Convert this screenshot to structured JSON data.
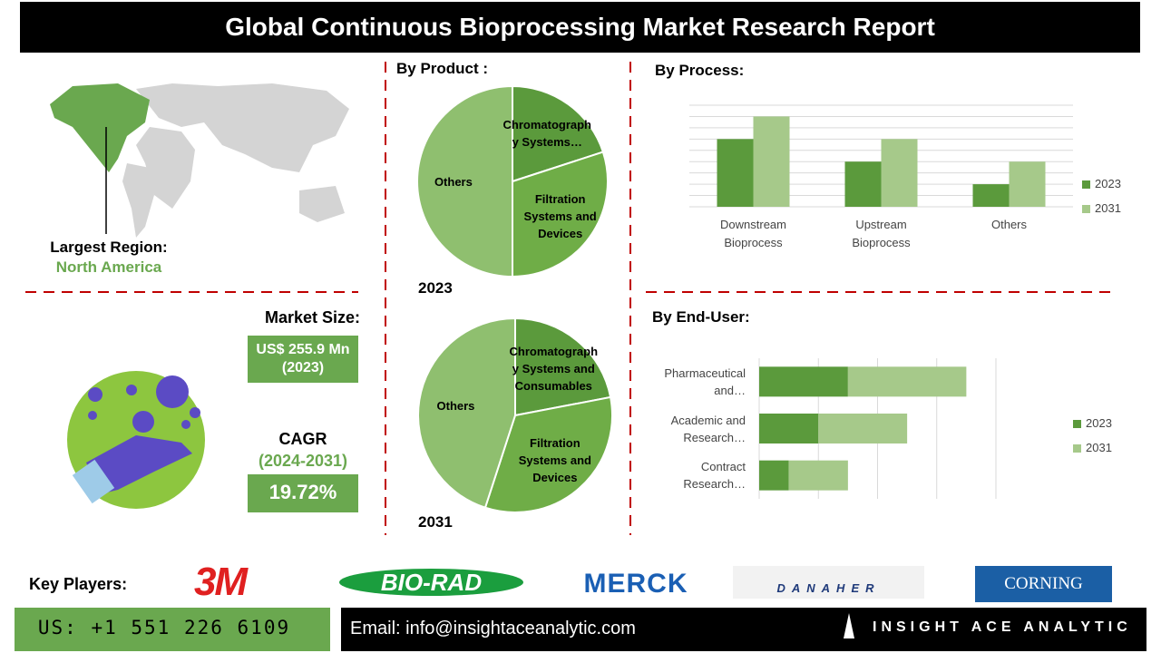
{
  "title": "Global Continuous Bioprocessing Market Research Report",
  "region": {
    "label": "Largest Region:",
    "value": "North America"
  },
  "market_size": {
    "label": "Market Size:",
    "value": "US$ 255.9 Mn (2023)"
  },
  "cagr": {
    "label": "CAGR",
    "period": "(2024-2031)",
    "value": "19.72%"
  },
  "key_players": {
    "label": "Key Players:",
    "logos": [
      "3M",
      "BIO-RAD",
      "MERCK",
      "DANAHER",
      "CORNING"
    ]
  },
  "footer": {
    "phone": "US: +1 551 226 6109",
    "email": "Email: info@insightaceanalytic.com",
    "brand": "INSIGHT ACE ANALYTIC"
  },
  "chart_data": [
    {
      "type": "pie",
      "title": "By Product :",
      "caption": "2023",
      "categories": [
        "Chromatography Systems…",
        "Filtration Systems and Devices",
        "Others"
      ],
      "values": [
        20,
        30,
        50
      ],
      "colors": [
        "#5b9a3c",
        "#6fad47",
        "#8fbf6f"
      ]
    },
    {
      "type": "pie",
      "caption": "2031",
      "categories": [
        "Chromatography Systems and Consumables",
        "Filtration Systems and Devices",
        "Others"
      ],
      "values": [
        22,
        33,
        45
      ],
      "colors": [
        "#5b9a3c",
        "#6fad47",
        "#8fbf6f"
      ]
    },
    {
      "type": "bar",
      "title": "By  Process:",
      "categories": [
        "Downstream Bioprocess",
        "Upstream Bioprocess",
        "Others"
      ],
      "series": [
        {
          "name": "2023",
          "color": "#5b9a3c",
          "values": [
            6,
            4,
            2
          ]
        },
        {
          "name": "2031",
          "color": "#a6c98a",
          "values": [
            8,
            6,
            4
          ]
        }
      ],
      "ylim": [
        0,
        9
      ],
      "yticks": [
        0,
        1,
        2,
        3,
        4,
        5,
        6,
        7,
        8,
        9
      ],
      "grid": true,
      "legend": "right"
    },
    {
      "type": "barh_stacked",
      "title": "By End-User:",
      "categories": [
        "Pharmaceutical and…",
        "Academic and Research…",
        "Contract Research…"
      ],
      "series": [
        {
          "name": "2023",
          "color": "#5b9a3c",
          "values": [
            1.5,
            1,
            0.5
          ]
        },
        {
          "name": "2031",
          "color": "#a6c98a",
          "values": [
            2,
            1.5,
            1
          ]
        }
      ],
      "xlim": [
        0,
        4
      ],
      "xticks": [
        0,
        1,
        2,
        3,
        4
      ],
      "grid": true,
      "legend": "right"
    }
  ]
}
